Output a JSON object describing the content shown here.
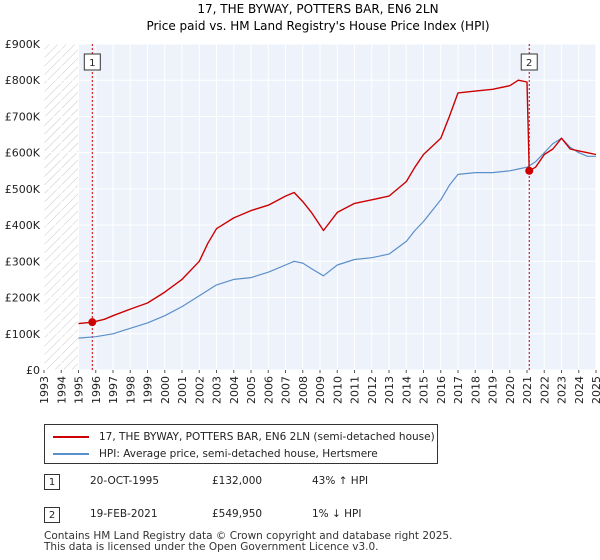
{
  "chart_data": {
    "type": "line",
    "title": "17, THE BYWAY, POTTERS BAR, EN6 2LN",
    "subtitle": "Price paid vs. HM Land Registry's House Price Index (HPI)",
    "xlim": [
      1993.0,
      2025.0
    ],
    "ylim": [
      0,
      900000
    ],
    "x_ticks": [
      "1993",
      "1994",
      "1995",
      "1996",
      "1997",
      "1998",
      "1999",
      "2000",
      "2001",
      "2002",
      "2003",
      "2004",
      "2005",
      "2006",
      "2007",
      "2008",
      "2009",
      "2010",
      "2011",
      "2012",
      "2013",
      "2014",
      "2015",
      "2016",
      "2017",
      "2018",
      "2019",
      "2020",
      "2021",
      "2022",
      "2023",
      "2024",
      "2025"
    ],
    "y_ticks": [
      {
        "value": 0,
        "label": "£0"
      },
      {
        "value": 100000,
        "label": "£100K"
      },
      {
        "value": 200000,
        "label": "£200K"
      },
      {
        "value": 300000,
        "label": "£300K"
      },
      {
        "value": 400000,
        "label": "£400K"
      },
      {
        "value": 500000,
        "label": "£500K"
      },
      {
        "value": 600000,
        "label": "£600K"
      },
      {
        "value": 700000,
        "label": "£700K"
      },
      {
        "value": 800000,
        "label": "£800K"
      },
      {
        "value": 900000,
        "label": "£900K"
      }
    ],
    "colors": {
      "property": "#cc0000",
      "hpi": "#5b8fc9",
      "plot_bg": "#eef3fb",
      "hatch": "#c8c8c8",
      "marker_line": "#cc0000",
      "grid": "#ffffff"
    },
    "hatch_before": 1995.0,
    "series": [
      {
        "name": "17, THE BYWAY, POTTERS BAR, EN6 2LN (semi-detached house)",
        "key": "property",
        "x": [
          1995.0,
          1995.8,
          1996.5,
          1997.0,
          1998.0,
          1999.0,
          2000.0,
          2001.0,
          2002.0,
          2002.5,
          2003.0,
          2004.0,
          2005.0,
          2006.0,
          2007.0,
          2007.5,
          2008.0,
          2008.5,
          2009.2,
          2010.0,
          2011.0,
          2012.0,
          2013.0,
          2014.0,
          2014.5,
          2015.0,
          2016.0,
          2016.5,
          2017.0,
          2018.0,
          2019.0,
          2020.0,
          2020.5,
          2021.0,
          2021.13,
          2021.5,
          2022.0,
          2022.5,
          2023.0,
          2023.5,
          2024.0,
          2024.5,
          2025.0
        ],
        "y": [
          128000,
          132000,
          140000,
          150000,
          168000,
          185000,
          215000,
          250000,
          300000,
          350000,
          390000,
          420000,
          440000,
          455000,
          480000,
          490000,
          465000,
          435000,
          385000,
          435000,
          460000,
          470000,
          480000,
          520000,
          560000,
          595000,
          640000,
          700000,
          765000,
          770000,
          775000,
          785000,
          800000,
          795000,
          549950,
          560000,
          595000,
          610000,
          640000,
          610000,
          605000,
          600000,
          595000
        ]
      },
      {
        "name": "HPI: Average price, semi-detached house, Hertsmere",
        "key": "hpi",
        "x": [
          1995.0,
          1996.0,
          1997.0,
          1998.0,
          1999.0,
          2000.0,
          2001.0,
          2002.0,
          2003.0,
          2004.0,
          2005.0,
          2006.0,
          2007.0,
          2007.5,
          2008.0,
          2008.5,
          2009.2,
          2010.0,
          2011.0,
          2012.0,
          2013.0,
          2014.0,
          2014.5,
          2015.0,
          2016.0,
          2016.5,
          2017.0,
          2018.0,
          2019.0,
          2020.0,
          2020.5,
          2021.0,
          2021.5,
          2022.0,
          2022.5,
          2023.0,
          2023.5,
          2024.0,
          2024.5,
          2025.0
        ],
        "y": [
          88000,
          92000,
          100000,
          115000,
          130000,
          150000,
          175000,
          205000,
          235000,
          250000,
          255000,
          270000,
          290000,
          300000,
          295000,
          280000,
          260000,
          290000,
          305000,
          310000,
          320000,
          355000,
          385000,
          410000,
          470000,
          510000,
          540000,
          545000,
          545000,
          550000,
          555000,
          560000,
          575000,
          600000,
          625000,
          640000,
          615000,
          600000,
          590000,
          590000
        ]
      }
    ],
    "sales": [
      {
        "id": "1",
        "x": 1995.8,
        "y": 132000,
        "date": "20-OCT-1995",
        "price": "£132,000",
        "hpi": "43% ↑ HPI"
      },
      {
        "id": "2",
        "x": 2021.13,
        "y": 549950,
        "date": "19-FEB-2021",
        "price": "£549,950",
        "hpi": "1% ↓ HPI"
      }
    ]
  },
  "legend": {
    "property_label": "17, THE BYWAY, POTTERS BAR, EN6 2LN (semi-detached house)",
    "hpi_label": "HPI: Average price, semi-detached house, Hertsmere"
  },
  "footer": {
    "line1": "Contains HM Land Registry data © Crown copyright and database right 2025.",
    "line2": "This data is licensed under the Open Government Licence v3.0."
  }
}
